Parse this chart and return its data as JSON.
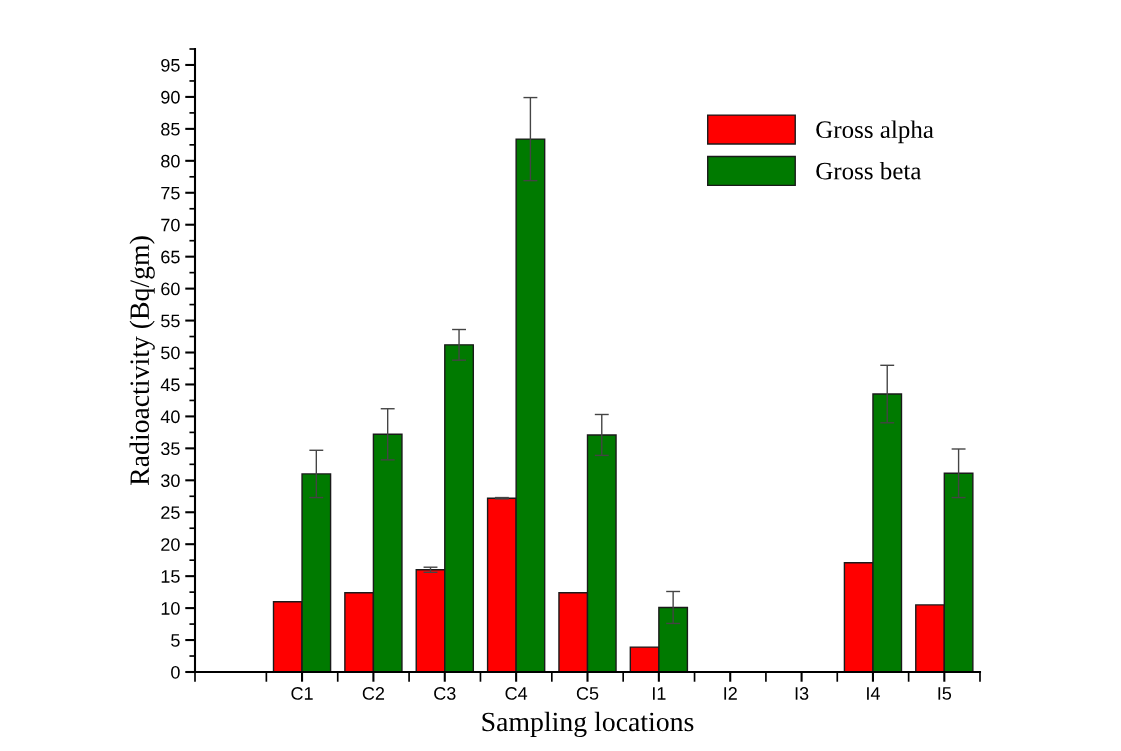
{
  "chart_data": {
    "type": "bar",
    "xlabel": "Sampling locations",
    "ylabel": "Radioactivity (Bq/gm)",
    "categories": [
      "C1",
      "C2",
      "C3",
      "C4",
      "C5",
      "I1",
      "I2",
      "I3",
      "I4",
      "I5"
    ],
    "series": [
      {
        "name": "Gross alpha",
        "color": "#ff0000",
        "values": [
          11.0,
          12.4,
          16.0,
          27.2,
          12.4,
          3.9,
          null,
          null,
          17.1,
          10.5
        ],
        "errors": [
          null,
          null,
          0.4,
          0.1,
          null,
          null,
          null,
          null,
          null,
          null
        ]
      },
      {
        "name": "Gross beta",
        "color": "#007a00",
        "values": [
          31.0,
          37.2,
          51.2,
          83.4,
          37.1,
          10.1,
          null,
          null,
          43.5,
          31.1
        ],
        "errors": [
          3.7,
          4.0,
          2.4,
          6.5,
          3.2,
          2.5,
          null,
          null,
          4.5,
          3.8
        ]
      }
    ],
    "ylim": [
      0,
      97.5
    ],
    "yticks": [
      0,
      5,
      10,
      15,
      20,
      25,
      30,
      35,
      40,
      45,
      50,
      55,
      60,
      65,
      70,
      75,
      80,
      85,
      90,
      95
    ],
    "grid": false,
    "legend": "top right"
  }
}
